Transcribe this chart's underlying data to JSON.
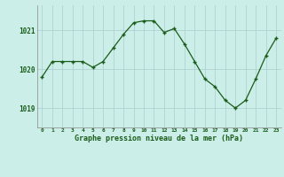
{
  "x": [
    0,
    1,
    2,
    3,
    4,
    5,
    6,
    7,
    8,
    9,
    10,
    11,
    12,
    13,
    14,
    15,
    16,
    17,
    18,
    19,
    20,
    21,
    22,
    23
  ],
  "y": [
    1019.8,
    1020.2,
    1020.2,
    1020.2,
    1020.2,
    1020.05,
    1020.2,
    1020.55,
    1020.9,
    1021.2,
    1021.25,
    1021.25,
    1020.95,
    1021.05,
    1020.65,
    1020.2,
    1019.75,
    1019.55,
    1019.2,
    1019.0,
    1019.2,
    1019.75,
    1020.35,
    1020.8
  ],
  "line_color": "#1a5c1a",
  "marker_color": "#1a5c1a",
  "bg_color": "#cceee8",
  "grid_color": "#aacccc",
  "xlabel": "Graphe pression niveau de la mer (hPa)",
  "xlabel_color": "#1a5c1a",
  "tick_label_color": "#1a5c1a",
  "ylim": [
    1018.5,
    1021.65
  ],
  "yticks": [
    1019,
    1020,
    1021
  ],
  "xlim": [
    -0.5,
    23.5
  ],
  "figsize": [
    3.2,
    2.0
  ],
  "dpi": 100
}
